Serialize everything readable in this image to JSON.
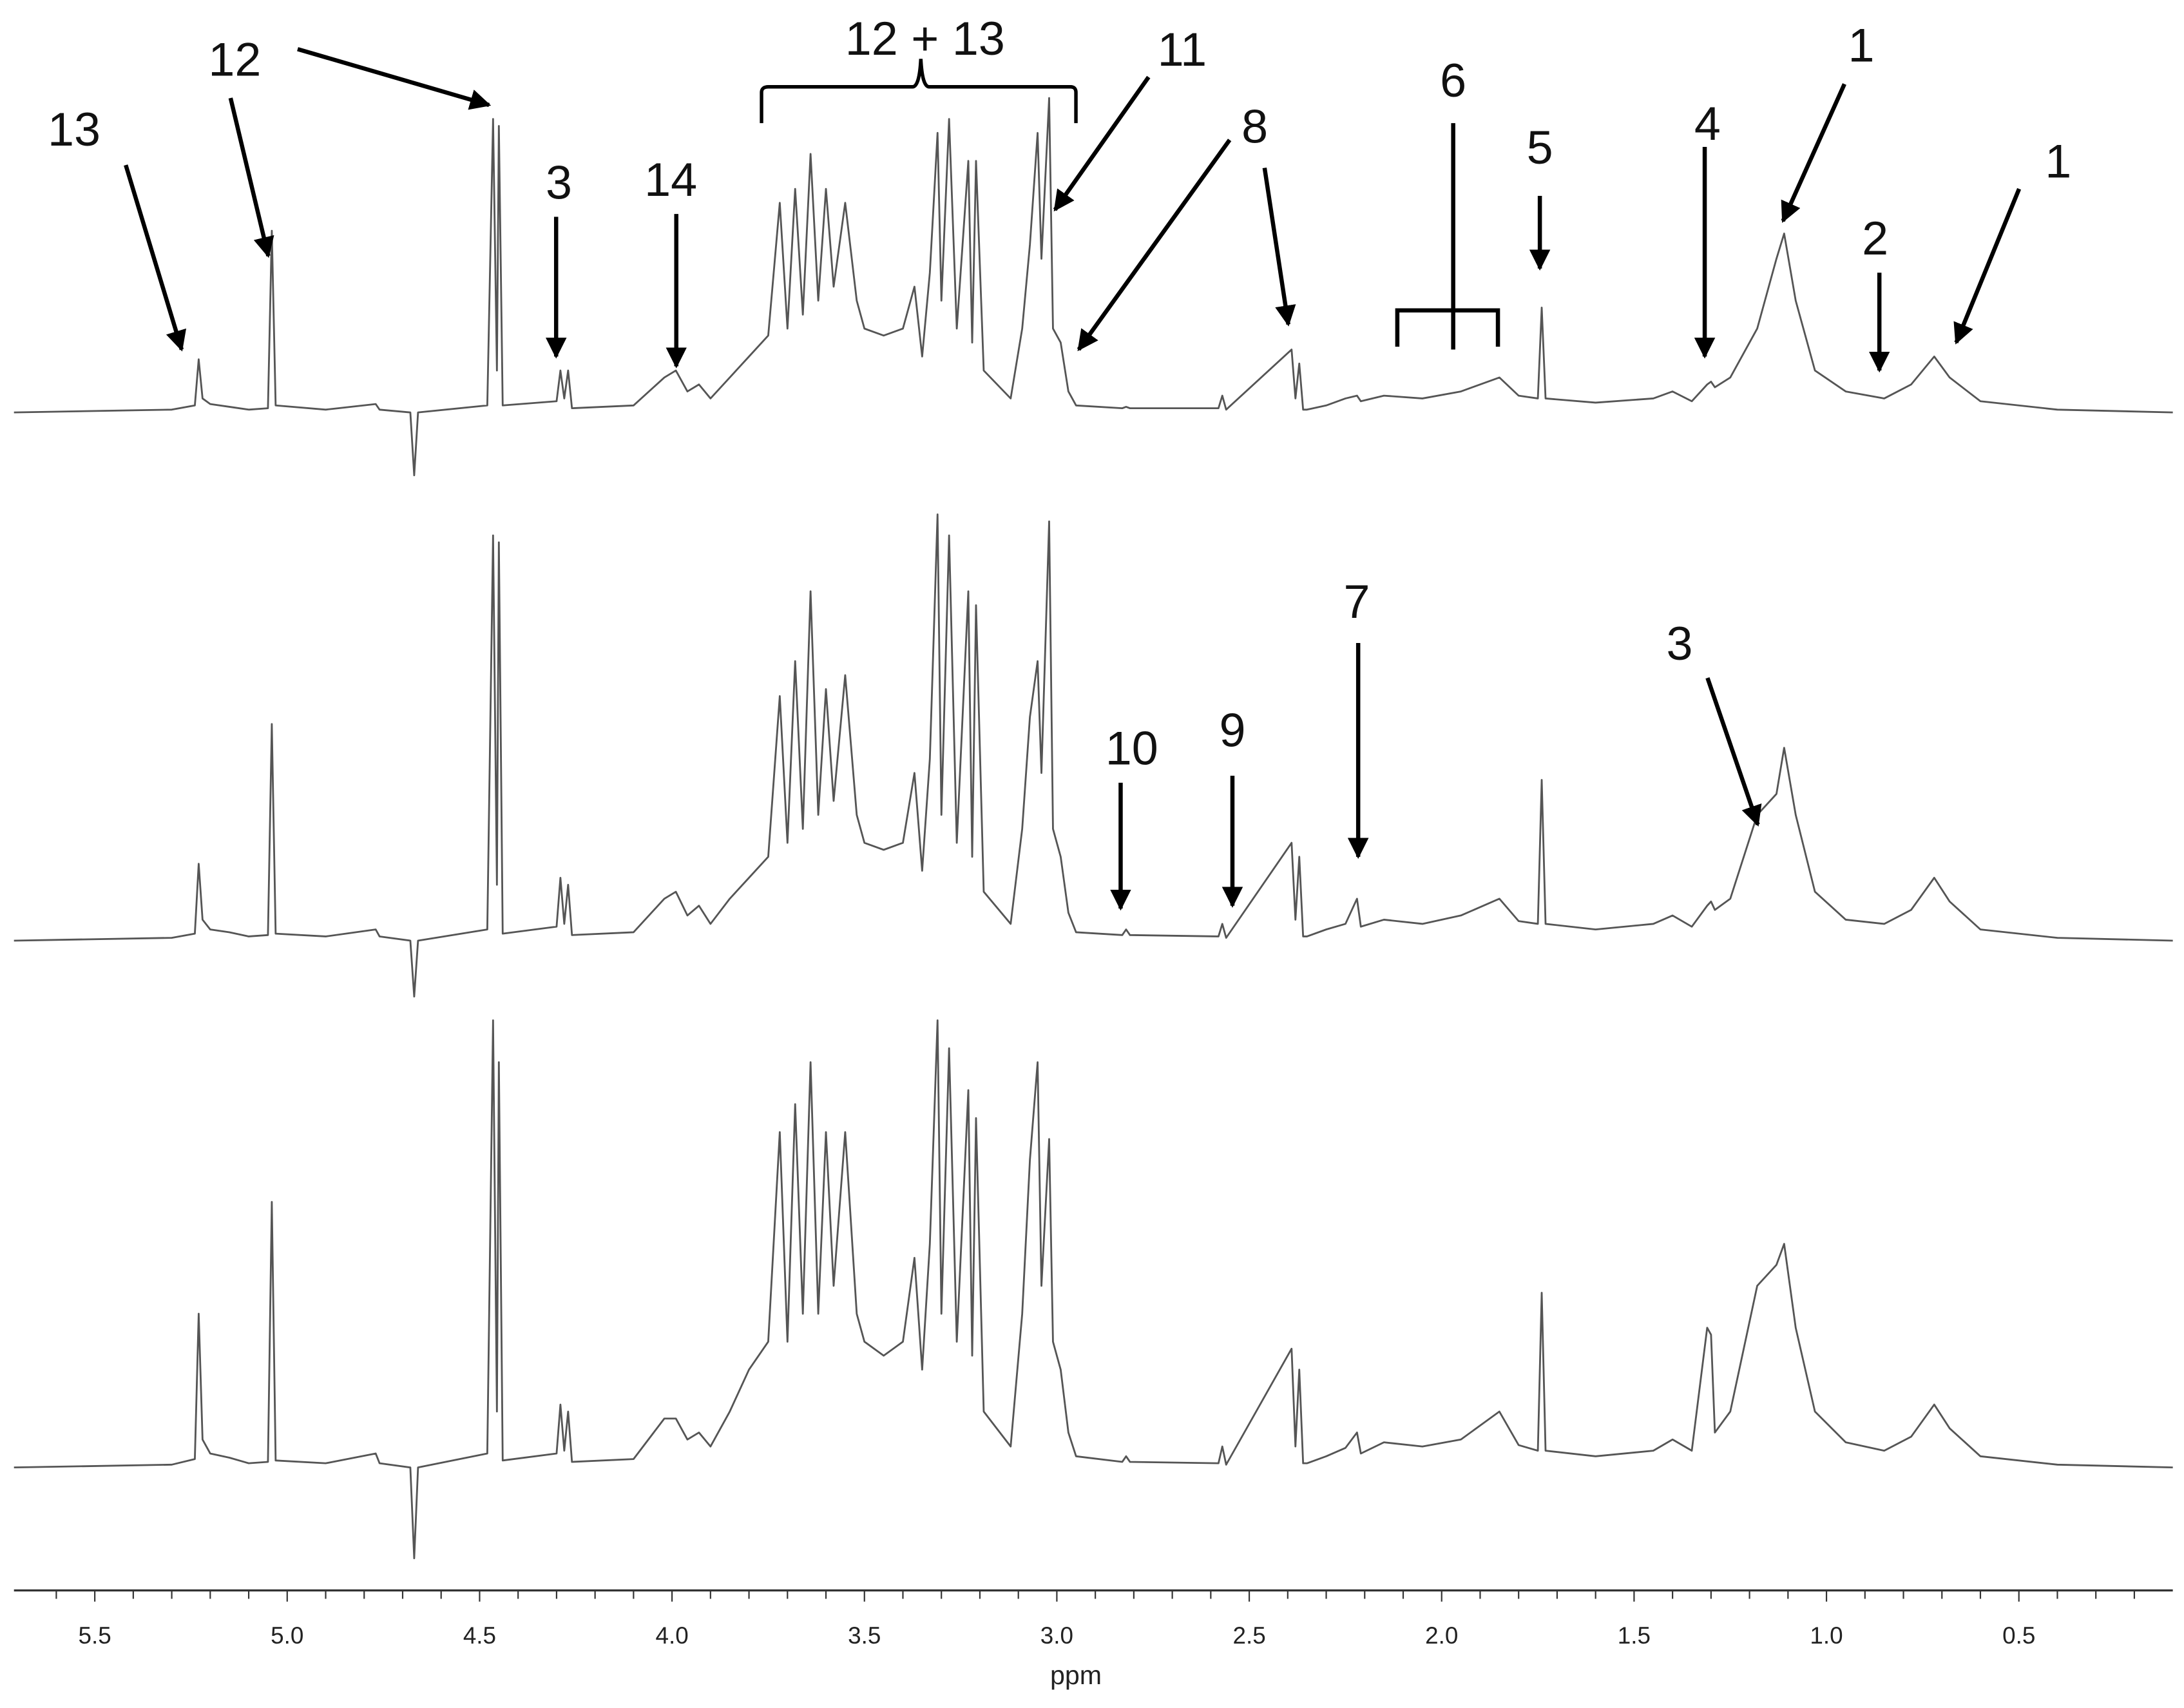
{
  "chart_data": {
    "type": "line",
    "x_label": "ppm",
    "xlim": [
      5.71,
      0.1
    ],
    "ylim": [
      -70,
      330
    ],
    "xticks": [
      5.5,
      {
        "value": 5,
        "label": "5.0"
      },
      4.5,
      {
        "value": 4,
        "label": "4.0"
      },
      3.5,
      {
        "value": 3,
        "label": "3.0"
      },
      2.5,
      {
        "value": 2,
        "label": "2.0"
      },
      1.5,
      {
        "value": 1,
        "label": "1.0"
      },
      0.5
    ],
    "xminorticks": [
      5.6,
      5.4,
      5.3,
      5.2,
      5.1,
      4.9,
      4.8,
      4.7,
      4.6,
      4.4,
      4.3,
      4.2,
      4.1,
      3.9,
      3.8,
      3.7,
      3.6,
      3.4,
      3.3,
      3.2,
      3.1,
      2.9,
      2.8,
      2.7,
      2.6,
      2.4,
      2.3,
      2.2,
      2.1,
      1.9,
      1.8,
      1.7,
      1.6,
      1.4,
      1.3,
      1.2,
      1.1,
      0.9,
      0.8,
      0.7,
      0.6,
      0.4,
      0.3,
      0.2
    ],
    "x": [
      5.71,
      5.3,
      5.24,
      5.23,
      5.22,
      5.2,
      5.15,
      5.1,
      5.05,
      5.04,
      5.03,
      4.9,
      4.77,
      4.76,
      4.68,
      4.67,
      4.66,
      4.48,
      4.465,
      4.455,
      4.45,
      4.44,
      4.3,
      4.29,
      4.28,
      4.27,
      4.26,
      4.1,
      4.02,
      3.99,
      3.96,
      3.93,
      3.9,
      3.85,
      3.8,
      3.75,
      3.72,
      3.7,
      3.68,
      3.66,
      3.64,
      3.62,
      3.6,
      3.58,
      3.55,
      3.52,
      3.5,
      3.45,
      3.4,
      3.37,
      3.35,
      3.33,
      3.31,
      3.3,
      3.28,
      3.26,
      3.23,
      3.22,
      3.21,
      3.19,
      3.12,
      3.09,
      3.07,
      3.05,
      3.04,
      3.02,
      3.01,
      2.99,
      2.97,
      2.95,
      2.83,
      2.82,
      2.81,
      2.58,
      2.57,
      2.56,
      2.39,
      2.38,
      2.37,
      2.36,
      2.35,
      2.3,
      2.25,
      2.22,
      2.21,
      2.15,
      2.05,
      1.95,
      1.85,
      1.8,
      1.75,
      1.74,
      1.73,
      1.6,
      1.45,
      1.4,
      1.35,
      1.31,
      1.3,
      1.29,
      1.25,
      1.18,
      1.13,
      1.11,
      1.08,
      1.03,
      0.95,
      0.85,
      0.78,
      0.72,
      0.68,
      0.6,
      0.4,
      0.1
    ],
    "series": [
      {
        "color": "#555555",
        "values": [
          0,
          2,
          5,
          38,
          10,
          6,
          4,
          2,
          3,
          130,
          5,
          2,
          6,
          2,
          0,
          -45,
          0,
          5,
          210,
          30,
          205,
          5,
          8,
          30,
          10,
          30,
          3,
          5,
          25,
          30,
          15,
          20,
          10,
          25,
          40,
          55,
          150,
          60,
          160,
          70,
          185,
          80,
          160,
          90,
          150,
          80,
          60,
          55,
          60,
          90,
          40,
          100,
          200,
          80,
          210,
          60,
          180,
          50,
          180,
          30,
          10,
          60,
          120,
          200,
          110,
          225,
          60,
          50,
          15,
          5,
          3,
          4,
          3,
          3,
          12,
          2,
          45,
          10,
          35,
          2,
          2,
          5,
          10,
          12,
          8,
          12,
          10,
          15,
          25,
          12,
          10,
          75,
          10,
          7,
          10,
          15,
          8,
          20,
          22,
          18,
          25,
          60,
          110,
          128,
          80,
          30,
          15,
          10,
          20,
          40,
          25,
          8,
          2,
          0
        ]
      },
      {
        "color": "#555555",
        "values": [
          0,
          2,
          5,
          55,
          15,
          8,
          6,
          3,
          4,
          155,
          5,
          3,
          8,
          3,
          0,
          -40,
          0,
          8,
          290,
          40,
          285,
          5,
          10,
          45,
          12,
          40,
          4,
          6,
          30,
          35,
          18,
          25,
          12,
          30,
          45,
          60,
          175,
          70,
          200,
          80,
          250,
          90,
          180,
          100,
          190,
          90,
          70,
          65,
          70,
          120,
          50,
          130,
          305,
          90,
          290,
          70,
          250,
          60,
          240,
          35,
          12,
          80,
          160,
          200,
          120,
          300,
          80,
          60,
          20,
          6,
          4,
          8,
          4,
          3,
          12,
          2,
          70,
          15,
          60,
          3,
          3,
          8,
          12,
          30,
          10,
          15,
          12,
          18,
          30,
          14,
          12,
          115,
          12,
          8,
          12,
          18,
          10,
          25,
          28,
          22,
          30,
          90,
          105,
          138,
          90,
          35,
          15,
          12,
          22,
          45,
          28,
          8,
          2,
          0
        ]
      },
      {
        "color": "#555555",
        "values": [
          0,
          2,
          6,
          110,
          20,
          10,
          7,
          3,
          4,
          190,
          5,
          3,
          10,
          3,
          0,
          -65,
          0,
          10,
          320,
          40,
          290,
          5,
          10,
          45,
          12,
          40,
          4,
          6,
          35,
          35,
          20,
          25,
          15,
          40,
          70,
          90,
          240,
          90,
          260,
          110,
          290,
          110,
          240,
          130,
          240,
          110,
          90,
          80,
          90,
          150,
          70,
          160,
          320,
          110,
          300,
          90,
          270,
          80,
          250,
          40,
          15,
          110,
          220,
          290,
          130,
          235,
          90,
          70,
          25,
          8,
          4,
          8,
          4,
          3,
          15,
          2,
          85,
          15,
          70,
          3,
          3,
          8,
          14,
          25,
          10,
          18,
          15,
          20,
          40,
          16,
          12,
          125,
          12,
          8,
          12,
          20,
          12,
          100,
          95,
          25,
          40,
          130,
          145,
          160,
          100,
          40,
          18,
          12,
          22,
          45,
          28,
          8,
          2,
          0
        ]
      }
    ],
    "annotations": [
      "13",
      "12",
      "12 + 13",
      "11",
      "8",
      "3",
      "14",
      "6",
      "5",
      "4",
      "1",
      "2",
      "1",
      "10",
      "9",
      "7",
      "3"
    ]
  }
}
